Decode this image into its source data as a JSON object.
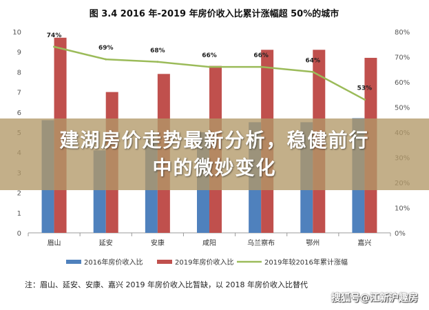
{
  "chart_data": {
    "type": "bar",
    "title": "图 3.4 2016 年-2019 年房价收入比累计涨幅超 50%的城市",
    "categories": [
      "眉山",
      "延安",
      "安康",
      "咸阳",
      "乌兰察布",
      "鄂州",
      "嘉兴"
    ],
    "series": [
      {
        "name": "2016年房价收入比",
        "kind": "bar",
        "axis": "left",
        "color": "#4f81bd",
        "values": [
          5.6,
          4.1,
          4.6,
          5.0,
          5.5,
          5.5,
          5.7
        ]
      },
      {
        "name": "2019年房价收入比",
        "kind": "bar",
        "axis": "left",
        "color": "#c0504d",
        "values": [
          9.7,
          7.0,
          7.9,
          8.3,
          9.1,
          9.1,
          8.7
        ]
      },
      {
        "name": "2019年较2016年累计涨幅",
        "kind": "line",
        "axis": "right",
        "color": "#9bbb59",
        "values": [
          74,
          69,
          68,
          66,
          66,
          64,
          53
        ],
        "labels": [
          "74%",
          "69%",
          "68%",
          "66%",
          "66%",
          "64%",
          "53%"
        ]
      }
    ],
    "y_left": {
      "min": 0,
      "max": 10,
      "step": 1,
      "ticks": [
        "0",
        "1",
        "2",
        "3",
        "4",
        "5",
        "6",
        "7",
        "8",
        "9",
        "10"
      ]
    },
    "y_right": {
      "min": 0,
      "max": 80,
      "step": 10,
      "ticks": [
        "0%",
        "10%",
        "20%",
        "30%",
        "40%",
        "50%",
        "60%",
        "70%",
        "80%"
      ]
    },
    "grid": false,
    "legend": "bottom"
  },
  "banner": {
    "line1": "建湖房价走势最新分析，稳健前行",
    "line2": "中的微妙变化"
  },
  "note": "注：眉山、延安、安康、嘉兴 2019 年房价收入比暂缺，以 2018 年房价收入比替代",
  "watermark": "搜狐号@江新沪趣房"
}
